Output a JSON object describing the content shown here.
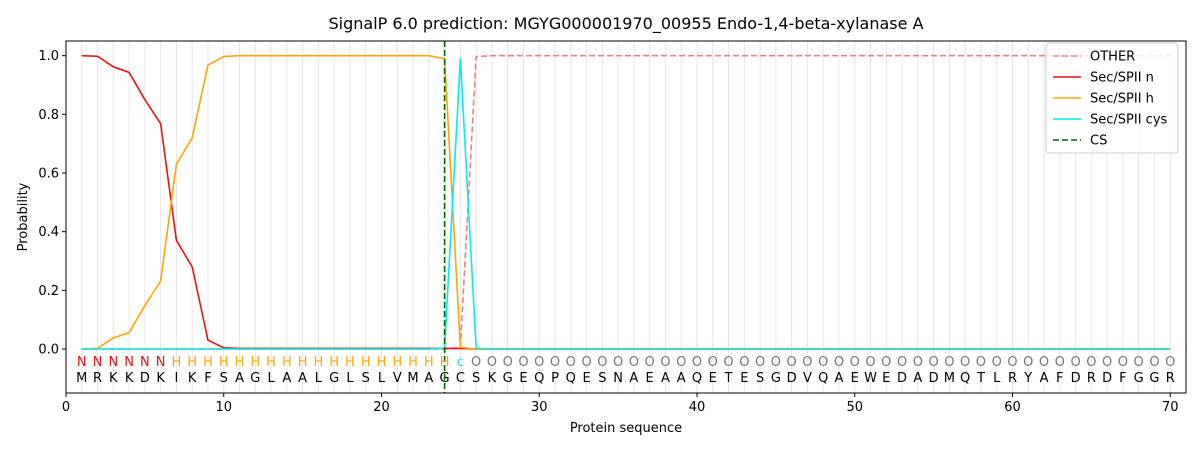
{
  "chart_data": {
    "type": "line",
    "title": "SignalP 6.0 prediction: MGYG000001970_00955 Endo-1,4-beta-xylanase A",
    "xlabel": "Protein sequence",
    "ylabel": "Probability",
    "xlim": [
      0,
      71
    ],
    "ylim": [
      -0.15,
      1.05
    ],
    "x_ticks": [
      0,
      10,
      20,
      30,
      40,
      50,
      60,
      70
    ],
    "y_ticks": [
      0.0,
      0.2,
      0.4,
      0.6,
      0.8,
      1.0
    ],
    "y_tick_labels": [
      "0.0",
      "0.2",
      "0.4",
      "0.6",
      "0.8",
      "1.0"
    ],
    "legend_position": "top-right",
    "sequence": [
      "M",
      "R",
      "K",
      "K",
      "D",
      "K",
      "I",
      "K",
      "F",
      "S",
      "A",
      "G",
      "L",
      "A",
      "A",
      "L",
      "G",
      "L",
      "S",
      "L",
      "V",
      "M",
      "A",
      "G",
      "C",
      "S",
      "K",
      "G",
      "E",
      "Q",
      "P",
      "Q",
      "E",
      "S",
      "N",
      "A",
      "E",
      "A",
      "A",
      "Q",
      "E",
      "T",
      "E",
      "S",
      "G",
      "D",
      "V",
      "Q",
      "A",
      "E",
      "W",
      "E",
      "D",
      "A",
      "D",
      "M",
      "Q",
      "T",
      "L",
      "R",
      "Y",
      "A",
      "F",
      "D",
      "R",
      "D",
      "F",
      "G",
      "G",
      "R"
    ],
    "labels": [
      "N",
      "N",
      "N",
      "N",
      "N",
      "N",
      "H",
      "H",
      "H",
      "H",
      "H",
      "H",
      "H",
      "H",
      "H",
      "H",
      "H",
      "H",
      "H",
      "H",
      "H",
      "H",
      "H",
      "H",
      "c",
      "O",
      "O",
      "O",
      "O",
      "O",
      "O",
      "O",
      "O",
      "O",
      "O",
      "O",
      "O",
      "O",
      "O",
      "O",
      "O",
      "O",
      "O",
      "O",
      "O",
      "O",
      "O",
      "O",
      "O",
      "O",
      "O",
      "O",
      "O",
      "O",
      "O",
      "O",
      "O",
      "O",
      "O",
      "O",
      "O",
      "O",
      "O",
      "O",
      "O",
      "O",
      "O",
      "O",
      "O",
      "O"
    ],
    "label_colors": {
      "N": "#ee1111",
      "H": "#ffa500",
      "c": "#22dddd",
      "O": "#777777"
    },
    "cs_position": 24,
    "series": [
      {
        "name": "OTHER",
        "color": "#f08080",
        "dash": true,
        "values": [
          0,
          0,
          0,
          0,
          0,
          0,
          0,
          0,
          0,
          0,
          0,
          0,
          0,
          0,
          0,
          0,
          0,
          0,
          0,
          0,
          0,
          0,
          0,
          0,
          0.005,
          0.997,
          1,
          1,
          1,
          1,
          1,
          1,
          1,
          1,
          1,
          1,
          1,
          1,
          1,
          1,
          1,
          1,
          1,
          1,
          1,
          1,
          1,
          1,
          1,
          1,
          1,
          1,
          1,
          1,
          1,
          1,
          1,
          1,
          1,
          1,
          1,
          1,
          1,
          1,
          1,
          1,
          1,
          1,
          1,
          1
        ]
      },
      {
        "name": "Sec/SPII n",
        "color": "#ee1111",
        "dash": false,
        "values": [
          1.0,
          0.998,
          0.962,
          0.943,
          0.85,
          0.768,
          0.37,
          0.28,
          0.03,
          0.004,
          0.002,
          0.002,
          0.002,
          0.002,
          0.002,
          0.002,
          0.002,
          0.002,
          0.002,
          0.002,
          0.002,
          0.002,
          0.002,
          0.002,
          0.002,
          0,
          0,
          0,
          0,
          0,
          0,
          0,
          0,
          0,
          0,
          0,
          0,
          0,
          0,
          0,
          0,
          0,
          0,
          0,
          0,
          0,
          0,
          0,
          0,
          0,
          0,
          0,
          0,
          0,
          0,
          0,
          0,
          0,
          0,
          0,
          0,
          0,
          0,
          0,
          0,
          0,
          0,
          0,
          0,
          0
        ]
      },
      {
        "name": "Sec/SPII h",
        "color": "#ffa500",
        "dash": false,
        "values": [
          0,
          0.002,
          0.038,
          0.056,
          0.148,
          0.232,
          0.63,
          0.72,
          0.968,
          0.997,
          1,
          1,
          1,
          1,
          1,
          1,
          1,
          1,
          1,
          1,
          1,
          1,
          1,
          0.99,
          0.006,
          0,
          0,
          0,
          0,
          0,
          0,
          0,
          0,
          0,
          0,
          0,
          0,
          0,
          0,
          0,
          0,
          0,
          0,
          0,
          0,
          0,
          0,
          0,
          0,
          0,
          0,
          0,
          0,
          0,
          0,
          0,
          0,
          0,
          0,
          0,
          0,
          0,
          0,
          0,
          0,
          0,
          0,
          0,
          0,
          0
        ]
      },
      {
        "name": "Sec/SPII cys",
        "color": "#00eeee",
        "dash": false,
        "values": [
          0,
          0,
          0,
          0,
          0,
          0,
          0,
          0,
          0,
          0,
          0,
          0,
          0,
          0,
          0,
          0,
          0,
          0,
          0,
          0,
          0,
          0,
          0,
          0.003,
          0.99,
          0.003,
          0,
          0,
          0,
          0,
          0,
          0,
          0,
          0,
          0,
          0,
          0,
          0,
          0,
          0,
          0,
          0,
          0,
          0,
          0,
          0,
          0,
          0,
          0,
          0,
          0,
          0,
          0,
          0,
          0,
          0,
          0,
          0,
          0,
          0,
          0,
          0,
          0,
          0,
          0,
          0,
          0,
          0,
          0,
          0
        ]
      }
    ],
    "cs_series": {
      "name": "CS",
      "color": "#006400"
    }
  }
}
